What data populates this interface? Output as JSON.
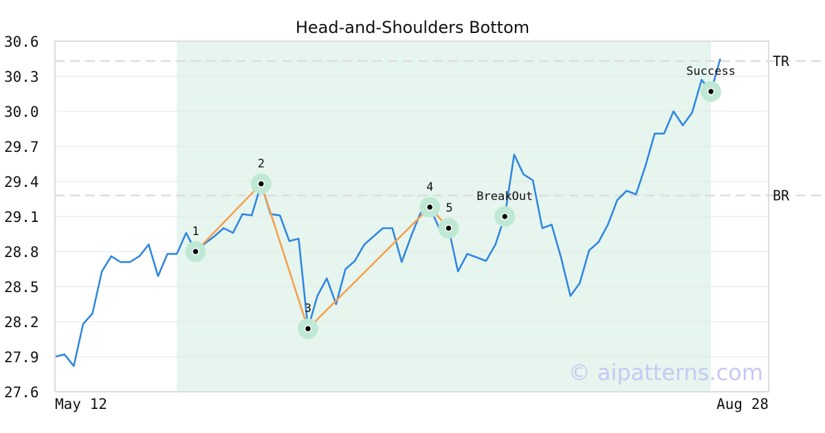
{
  "chart_data": {
    "type": "line",
    "title": "Head-and-Shoulders Bottom",
    "x_range_labels": [
      "May 12",
      "Aug 28"
    ],
    "ylim": [
      27.6,
      30.6
    ],
    "yticks": [
      "27.6",
      "27.9",
      "28.2",
      "28.5",
      "28.8",
      "29.1",
      "29.4",
      "29.7",
      "30.0",
      "30.3",
      "30.6"
    ],
    "grid": true,
    "colors": {
      "price": "#2f86e0",
      "pattern": "#f5a04c",
      "highlight": "#e6f5ee",
      "marker_halo": "#bfe9d4",
      "level": "#dddddd",
      "watermark": "#c8c8f4"
    },
    "highlight_range": [
      13,
      70
    ],
    "series": [
      {
        "values": [
          27.9,
          27.92,
          27.82,
          28.18,
          28.27,
          28.63,
          28.76,
          28.71,
          28.71,
          28.76,
          28.86,
          28.59,
          28.78,
          28.78,
          28.96,
          28.8,
          28.87,
          28.93,
          29.0,
          28.96,
          29.12,
          29.11,
          29.38,
          29.12,
          29.11,
          28.89,
          28.91,
          28.14,
          28.42,
          28.57,
          28.35,
          28.65,
          28.72,
          28.86,
          28.93,
          29.0,
          29.0,
          28.71,
          28.93,
          29.13,
          29.18,
          29.0,
          29.0,
          28.63,
          28.78,
          28.75,
          28.72,
          28.86,
          29.1,
          29.63,
          29.46,
          29.41,
          29.0,
          29.03,
          28.75,
          28.42,
          28.53,
          28.81,
          28.88,
          29.03,
          29.24,
          29.32,
          29.29,
          29.53,
          29.81,
          29.81,
          30.0,
          29.88,
          29.99,
          30.27,
          30.17,
          30.45
        ]
      }
    ],
    "pattern_points": [
      {
        "label": "1",
        "index": 15,
        "value": 28.8
      },
      {
        "label": "2",
        "index": 22,
        "value": 29.38
      },
      {
        "label": "3",
        "index": 27,
        "value": 28.14
      },
      {
        "label": "4",
        "index": 40,
        "value": 29.18
      },
      {
        "label": "5",
        "index": 42,
        "value": 29.0
      }
    ],
    "signal_points": [
      {
        "label": "BreakOut",
        "index": 48,
        "value": 29.1
      },
      {
        "label": "Success",
        "index": 70,
        "value": 30.17
      }
    ],
    "levels": [
      {
        "label": "TR",
        "value": 30.43
      },
      {
        "label": "BR",
        "value": 29.28
      }
    ],
    "watermark": "© aipatterns.com"
  }
}
